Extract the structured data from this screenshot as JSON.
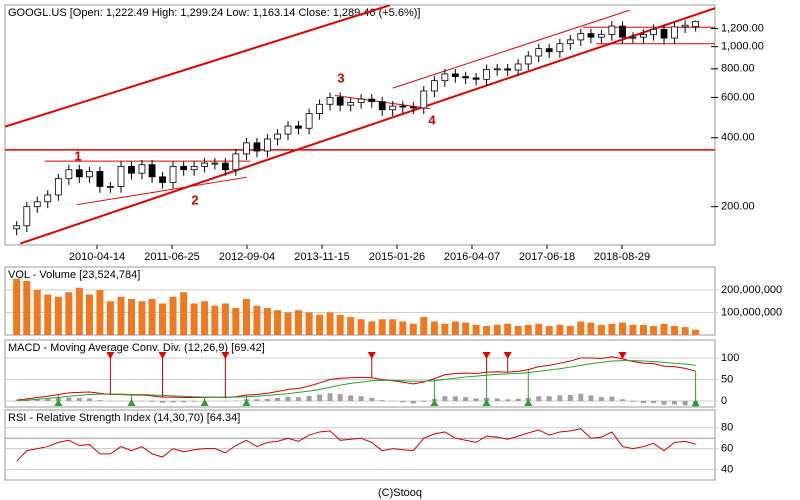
{
  "chart_data": [
    {
      "type": "candlestick",
      "title": "GOOGL.US [Open: 1,222.49 High: 1,299.24 Low: 1,163.14 Close: 1,289.46 (+5.6%)]",
      "x": [
        "2009-01-01",
        "2009-03-01",
        "2009-05-01",
        "2009-07-01",
        "2009-09-01",
        "2009-11-01",
        "2010-01-01",
        "2010-03-01",
        "2010-05-01",
        "2010-07-01",
        "2010-09-01",
        "2010-11-01",
        "2011-01-01",
        "2011-03-01",
        "2011-05-01",
        "2011-07-01",
        "2011-09-01",
        "2011-11-01",
        "2012-01-01",
        "2012-03-01",
        "2012-05-01",
        "2012-07-01",
        "2012-09-01",
        "2012-11-01",
        "2013-01-01",
        "2013-03-01",
        "2013-05-01",
        "2013-07-01",
        "2013-09-01",
        "2013-11-01",
        "2014-01-01",
        "2014-03-01",
        "2014-05-01",
        "2014-07-01",
        "2014-09-01",
        "2014-11-01",
        "2015-01-01",
        "2015-03-01",
        "2015-05-01",
        "2015-07-01",
        "2015-09-01",
        "2015-11-01",
        "2016-01-01",
        "2016-03-01",
        "2016-05-01",
        "2016-07-01",
        "2016-09-01",
        "2016-11-01",
        "2017-01-01",
        "2017-03-01",
        "2017-05-01",
        "2017-07-01",
        "2017-09-01",
        "2017-11-01",
        "2018-01-01",
        "2018-03-01",
        "2018-05-01",
        "2018-07-01",
        "2018-09-01",
        "2018-11-01",
        "2019-01-01",
        "2019-03-01",
        "2019-05-01",
        "2019-07-01",
        "2019-09-01",
        "2019-11-01"
      ],
      "open": [
        160,
        165,
        200,
        210,
        225,
        265,
        290,
        270,
        285,
        245,
        245,
        300,
        280,
        305,
        270,
        255,
        300,
        290,
        300,
        310,
        310,
        290,
        340,
        380,
        350,
        395,
        415,
        450,
        440,
        510,
        560,
        600,
        555,
        570,
        590,
        575,
        530,
        550,
        545,
        540,
        640,
        710,
        760,
        740,
        730,
        720,
        795,
        800,
        790,
        840,
        910,
        980,
        950,
        1030,
        1070,
        1140,
        1100,
        1130,
        1230,
        1100,
        1100,
        1130,
        1190,
        1090,
        1220,
        1222.49
      ],
      "high": [
        173,
        210,
        221,
        236,
        278,
        305,
        305,
        299,
        299,
        257,
        315,
        315,
        320,
        320,
        284,
        315,
        315,
        315,
        326,
        326,
        326,
        357,
        399,
        399,
        415,
        436,
        473,
        473,
        536,
        588,
        630,
        630,
        599,
        620,
        620,
        604,
        578,
        578,
        572,
        672,
        746,
        798,
        798,
        777,
        767,
        835,
        840,
        840,
        882,
        956,
        1029,
        1029,
        1082,
        1124,
        1197,
        1197,
        1187,
        1292,
        1292,
        1155,
        1187,
        1250,
        1250,
        1281,
        1302,
        1299.24
      ],
      "low": [
        150,
        155,
        188,
        197,
        212,
        249,
        254,
        254,
        230,
        230,
        230,
        263,
        263,
        254,
        240,
        240,
        273,
        273,
        282,
        291,
        273,
        273,
        320,
        329,
        329,
        371,
        390,
        414,
        414,
        479,
        526,
        522,
        522,
        536,
        541,
        498,
        498,
        512,
        508,
        508,
        602,
        667,
        696,
        686,
        677,
        677,
        747,
        743,
        743,
        790,
        855,
        893,
        893,
        968,
        1006,
        1034,
        1034,
        1062,
        1034,
        1034,
        1034,
        1062,
        1025,
        1025,
        1147,
        1163.14
      ],
      "close": [
        165,
        200,
        210,
        225,
        265,
        290,
        270,
        285,
        245,
        245,
        300,
        280,
        305,
        270,
        255,
        300,
        290,
        300,
        310,
        310,
        290,
        340,
        380,
        350,
        395,
        415,
        450,
        440,
        510,
        560,
        600,
        555,
        570,
        590,
        575,
        530,
        550,
        545,
        540,
        640,
        710,
        760,
        740,
        730,
        720,
        795,
        800,
        790,
        840,
        910,
        980,
        950,
        1030,
        1070,
        1140,
        1100,
        1130,
        1230,
        1100,
        1100,
        1130,
        1190,
        1090,
        1220,
        1240,
        1289.46
      ],
      "xlim": [
        "2008-10-25",
        "2020-02-22"
      ],
      "xticks": [
        "2010-04-14",
        "2011-06-25",
        "2012-09-04",
        "2013-11-15",
        "2015-01-26",
        "2016-04-07",
        "2017-06-18",
        "2018-08-29"
      ],
      "ylim": [
        136,
        1520
      ],
      "log_scale": true,
      "yticks": [
        {
          "value": 200,
          "label": "200.00"
        },
        {
          "value": 400,
          "label": "400.00"
        },
        {
          "value": 600,
          "label": "600.00"
        },
        {
          "value": 800,
          "label": "800.00"
        },
        {
          "value": 1000,
          "label": "1,000.00"
        },
        {
          "value": 1200,
          "label": "1,200.00"
        }
      ],
      "up_color": "#ffffff",
      "down_color": "#000000",
      "trendline_color": "#e00000",
      "trendlines": [
        {
          "x": [
            "2009-01-22",
            "2020-02-22"
          ],
          "y": [
            138,
            1472
          ],
          "width": 2
        },
        {
          "x": [
            "2008-10-25",
            "2014-12-16"
          ],
          "y": [
            447,
            1517
          ],
          "width": 2
        },
        {
          "x": [
            "2008-10-25",
            "2020-02-22"
          ],
          "y": [
            354,
            354
          ],
          "width": 1.5
        },
        {
          "x": [
            "2015-01-01",
            "2018-10-12"
          ],
          "y": [
            659,
            1442
          ],
          "width": 1
        },
        {
          "x": [
            "2018-01-15",
            "2020-02-22"
          ],
          "y": [
            1215,
            1215
          ],
          "width": 1
        },
        {
          "x": [
            "2018-04-01",
            "2020-02-22"
          ],
          "y": [
            1030,
            1030
          ],
          "width": 1
        },
        {
          "x": [
            "2009-06-15",
            "2012-09-22"
          ],
          "y": [
            316,
            316
          ],
          "width": 1
        },
        {
          "x": [
            "2009-12-18",
            "2012-09-04"
          ],
          "y": [
            204,
            269
          ],
          "width": 1
        },
        {
          "x": [
            "2014-01-30",
            "2015-08-07"
          ],
          "y": [
            612,
            536
          ],
          "width": 1
        }
      ],
      "annotations": [
        "1",
        "2",
        "3",
        "4"
      ]
    },
    {
      "type": "bar",
      "title": "VOL - Volume [23,524,784]",
      "color": "#f07820",
      "ylim": [
        0,
        302000000
      ],
      "yticks": [
        {
          "value": 100000000,
          "label": "100,000,000"
        },
        {
          "value": 200000000,
          "label": "200,000,000"
        }
      ],
      "values": [
        250000000,
        240000000,
        200000000,
        180000000,
        170000000,
        190000000,
        210000000,
        180000000,
        200000000,
        150000000,
        170000000,
        160000000,
        150000000,
        160000000,
        140000000,
        170000000,
        190000000,
        140000000,
        150000000,
        130000000,
        140000000,
        120000000,
        160000000,
        130000000,
        120000000,
        110000000,
        100000000,
        110000000,
        100000000,
        90000000,
        100000000,
        90000000,
        80000000,
        70000000,
        60000000,
        70000000,
        70000000,
        60000000,
        50000000,
        80000000,
        60000000,
        50000000,
        60000000,
        55000000,
        45000000,
        40000000,
        45000000,
        50000000,
        40000000,
        45000000,
        50000000,
        40000000,
        45000000,
        40000000,
        60000000,
        55000000,
        45000000,
        50000000,
        55000000,
        45000000,
        45000000,
        40000000,
        50000000,
        40000000,
        35000000,
        23524784
      ]
    },
    {
      "type": "macd",
      "title": "MACD - Moving Average Conv. Div. (12,26,9) [69.42]",
      "ylim": [
        -14,
        142
      ],
      "yticks": [
        0,
        50,
        100
      ],
      "series": [
        {
          "color": "#d00000",
          "values": [
            2,
            5,
            8,
            11,
            15,
            19,
            20,
            21,
            18,
            15,
            15,
            14,
            14,
            12,
            9,
            9,
            8,
            8,
            8,
            9,
            8,
            10,
            14,
            15,
            18,
            22,
            27,
            29,
            35,
            42,
            50,
            53,
            54,
            55,
            54,
            50,
            47,
            44,
            40,
            44,
            52,
            61,
            64,
            65,
            64,
            67,
            68,
            67,
            69,
            73,
            80,
            83,
            88,
            93,
            100,
            100,
            99,
            103,
            98,
            92,
            88,
            87,
            81,
            80,
            76,
            69.42
          ]
        },
        {
          "color": "#2e9e2e",
          "values": [
            1,
            2,
            4,
            6,
            8,
            11,
            13,
            15,
            16,
            16,
            16,
            15,
            15,
            14,
            13,
            12,
            11,
            10,
            9,
            9,
            9,
            9,
            10,
            11,
            13,
            15,
            17,
            20,
            23,
            27,
            32,
            37,
            41,
            44,
            47,
            48,
            48,
            47,
            46,
            46,
            47,
            50,
            53,
            56,
            58,
            60,
            62,
            63,
            64,
            66,
            69,
            72,
            75,
            79,
            83,
            87,
            90,
            93,
            94,
            94,
            93,
            92,
            90,
            88,
            86,
            83
          ]
        }
      ],
      "histogram": [
        1,
        3,
        4,
        5,
        7,
        8,
        7,
        6,
        2,
        -1,
        -1,
        -1,
        -1,
        -2,
        -4,
        -3,
        -3,
        -2,
        -1,
        0,
        -1,
        1,
        4,
        4,
        5,
        7,
        10,
        9,
        12,
        15,
        18,
        16,
        13,
        11,
        7,
        2,
        -1,
        -3,
        -6,
        -2,
        5,
        11,
        11,
        9,
        6,
        7,
        6,
        4,
        5,
        7,
        11,
        11,
        13,
        14,
        17,
        13,
        9,
        10,
        4,
        -2,
        -5,
        -5,
        -9,
        -8,
        -10,
        -13.58
      ],
      "histogram_color": "#a0a0a0",
      "sell_signals": [
        "2010-07-01",
        "2011-05-01",
        "2012-05-01",
        "2014-09-01",
        "2016-07-01",
        "2016-11-01",
        "2018-09-01"
      ],
      "buy_signals": [
        "2009-09-01",
        "2010-11-01",
        "2012-01-01",
        "2012-09-01",
        "2015-09-01",
        "2016-07-01",
        "2017-03-01",
        "2019-11-01"
      ]
    },
    {
      "type": "line",
      "title": "RSI - Relative Strength Index (14,30,70) [64.34]",
      "color": "#d00000",
      "ylim": [
        30,
        97
      ],
      "yticks": [
        40,
        60,
        80
      ],
      "levels": [
        70
      ],
      "values": [
        48,
        58,
        60,
        62,
        66,
        68,
        63,
        64,
        55,
        55,
        62,
        58,
        62,
        55,
        52,
        60,
        57,
        59,
        60,
        60,
        56,
        63,
        68,
        62,
        66,
        67,
        70,
        67,
        73,
        76,
        77,
        68,
        69,
        70,
        66,
        58,
        60,
        59,
        58,
        70,
        74,
        76,
        70,
        68,
        66,
        72,
        71,
        69,
        72,
        75,
        78,
        73,
        76,
        77,
        79,
        70,
        71,
        76,
        62,
        60,
        62,
        65,
        58,
        66,
        67,
        64.34
      ]
    }
  ],
  "footer": "(C)Stooq"
}
